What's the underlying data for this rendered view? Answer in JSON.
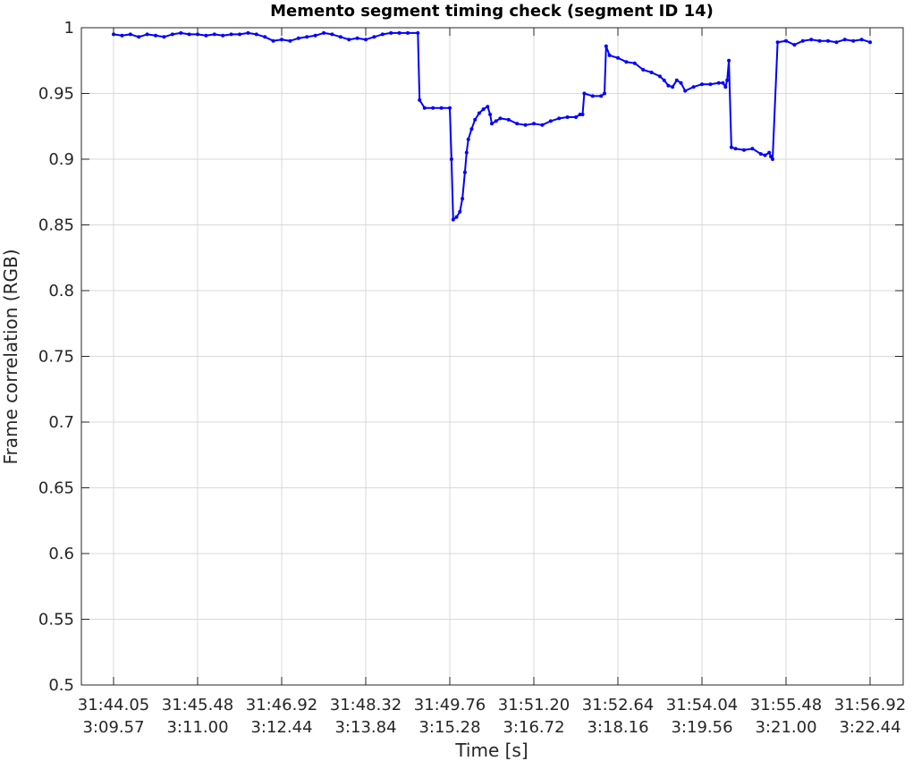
{
  "chart_data": {
    "type": "line",
    "title": "Memento segment timing check (segment ID 14)",
    "xlabel": "Time [s]",
    "ylabel": "Frame correlation (RGB)",
    "xlim": [
      0,
      9
    ],
    "ylim": [
      0.5,
      1
    ],
    "grid": true,
    "x_tick_labels": [
      [
        "31:44.05",
        "3:09.57"
      ],
      [
        "31:45.48",
        "3:11.00"
      ],
      [
        "31:46.92",
        "3:12.44"
      ],
      [
        "31:48.32",
        "3:13.84"
      ],
      [
        "31:49.76",
        "3:15.28"
      ],
      [
        "31:51.20",
        "3:16.72"
      ],
      [
        "31:52.64",
        "3:18.16"
      ],
      [
        "31:54.04",
        "3:19.56"
      ],
      [
        "31:55.48",
        "3:21.00"
      ],
      [
        "31:56.92",
        "3:22.44"
      ]
    ],
    "y_ticks": [
      "0.5",
      "0.55",
      "0.6",
      "0.65",
      "0.7",
      "0.75",
      "0.8",
      "0.85",
      "0.9",
      "0.95",
      "1"
    ],
    "y_tick_values": [
      0.5,
      0.55,
      0.6,
      0.65,
      0.7,
      0.75,
      0.8,
      0.85,
      0.9,
      0.95,
      1.0
    ],
    "colors": {
      "series": "#0000ff",
      "axis": "#262626",
      "grid": "#d9d9d9"
    },
    "series": [
      {
        "x": [
          0.0,
          0.1,
          0.2,
          0.3,
          0.4,
          0.5,
          0.6,
          0.7,
          0.8,
          0.9,
          1.0,
          1.1,
          1.2,
          1.3,
          1.4,
          1.5,
          1.6,
          1.7,
          1.8,
          1.9,
          2.0,
          2.1,
          2.2,
          2.3,
          2.4,
          2.5,
          2.6,
          2.7,
          2.8,
          2.9,
          3.0,
          3.1,
          3.2,
          3.3,
          3.4,
          3.5,
          3.62,
          3.64,
          3.7,
          3.8,
          3.9,
          4.0,
          4.02,
          4.04,
          4.08,
          4.12,
          4.15,
          4.18,
          4.2,
          4.22,
          4.26,
          4.3,
          4.35,
          4.4,
          4.45,
          4.48,
          4.5,
          4.55,
          4.6,
          4.7,
          4.8,
          4.9,
          5.0,
          5.1,
          5.2,
          5.3,
          5.4,
          5.5,
          5.55,
          5.58,
          5.6,
          5.7,
          5.8,
          5.84,
          5.86,
          5.9,
          6.0,
          6.1,
          6.2,
          6.3,
          6.4,
          6.5,
          6.55,
          6.6,
          6.65,
          6.7,
          6.75,
          6.8,
          6.9,
          7.0,
          7.1,
          7.2,
          7.25,
          7.28,
          7.3,
          7.32,
          7.35,
          7.4,
          7.5,
          7.6,
          7.7,
          7.75,
          7.8,
          7.82,
          7.84,
          7.9,
          8.0,
          8.1,
          8.2,
          8.3,
          8.4,
          8.5,
          8.6,
          8.7,
          8.8,
          8.9,
          9.0
        ],
        "y": [
          0.995,
          0.994,
          0.995,
          0.993,
          0.995,
          0.994,
          0.993,
          0.995,
          0.996,
          0.995,
          0.995,
          0.994,
          0.995,
          0.994,
          0.995,
          0.995,
          0.996,
          0.995,
          0.993,
          0.99,
          0.991,
          0.99,
          0.992,
          0.993,
          0.994,
          0.996,
          0.995,
          0.993,
          0.991,
          0.992,
          0.991,
          0.993,
          0.995,
          0.996,
          0.996,
          0.996,
          0.996,
          0.945,
          0.939,
          0.939,
          0.939,
          0.939,
          0.9,
          0.854,
          0.856,
          0.86,
          0.87,
          0.89,
          0.905,
          0.915,
          0.923,
          0.93,
          0.935,
          0.938,
          0.94,
          0.934,
          0.927,
          0.929,
          0.931,
          0.93,
          0.927,
          0.926,
          0.927,
          0.926,
          0.929,
          0.931,
          0.932,
          0.932,
          0.934,
          0.934,
          0.95,
          0.948,
          0.948,
          0.95,
          0.986,
          0.979,
          0.977,
          0.974,
          0.973,
          0.968,
          0.966,
          0.963,
          0.96,
          0.956,
          0.955,
          0.96,
          0.958,
          0.952,
          0.955,
          0.957,
          0.957,
          0.958,
          0.958,
          0.955,
          0.96,
          0.975,
          0.909,
          0.908,
          0.907,
          0.908,
          0.904,
          0.903,
          0.905,
          0.902,
          0.9,
          0.989,
          0.99,
          0.987,
          0.99,
          0.991,
          0.99,
          0.99,
          0.989,
          0.991,
          0.99,
          0.991,
          0.989
        ]
      }
    ]
  }
}
